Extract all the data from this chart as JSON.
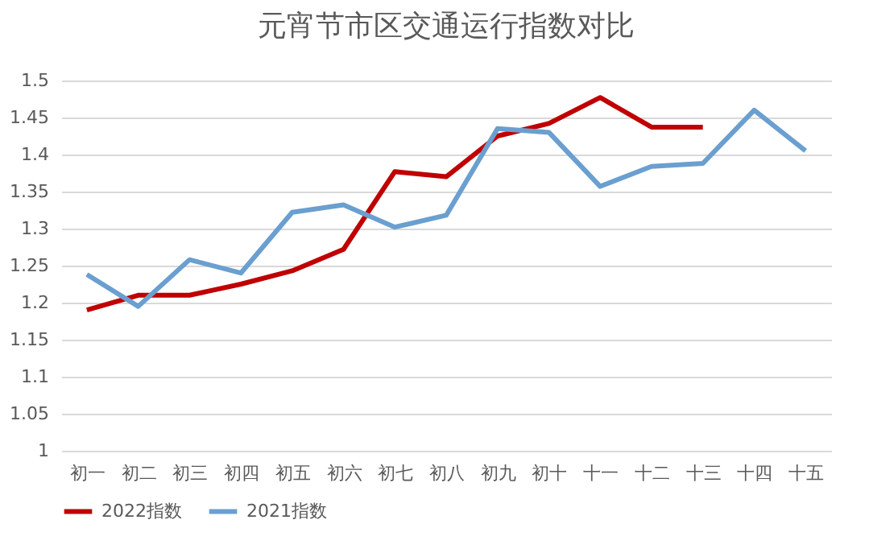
{
  "chart_data": {
    "type": "line",
    "title": "元宵节市区交通运行指数对比",
    "categories": [
      "初一",
      "初二",
      "初三",
      "初四",
      "初五",
      "初六",
      "初七",
      "初八",
      "初九",
      "初十",
      "十一",
      "十二",
      "十三",
      "十四",
      "十五"
    ],
    "series": [
      {
        "name": "2022指数",
        "color": "#c00000",
        "values": [
          1.19,
          1.21,
          1.21,
          1.225,
          1.243,
          1.272,
          1.377,
          1.37,
          1.425,
          1.442,
          1.477,
          1.437,
          1.437,
          null,
          null
        ]
      },
      {
        "name": "2021指数",
        "color": "#6a9fd0",
        "values": [
          1.238,
          1.195,
          1.258,
          1.24,
          1.322,
          1.332,
          1.302,
          1.318,
          1.435,
          1.43,
          1.357,
          1.384,
          1.388,
          1.46,
          1.405
        ]
      }
    ],
    "ylim": [
      1,
      1.5
    ],
    "yticks": [
      1,
      1.05,
      1.1,
      1.15,
      1.2,
      1.25,
      1.3,
      1.35,
      1.4,
      1.45,
      1.5
    ],
    "grid": "y",
    "legend": "bottom",
    "marker": "none",
    "line_style": "solid"
  }
}
